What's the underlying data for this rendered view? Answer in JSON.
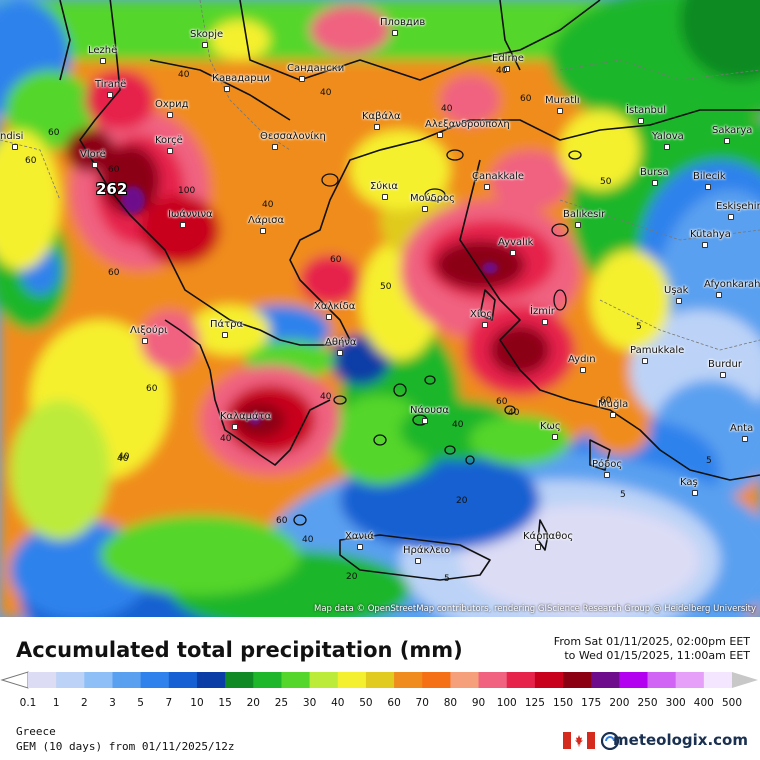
{
  "map": {
    "attribution": "Map data © OpenStreetMap contributors, rendering GIScience Research Group @ Heidelberg University",
    "max_value": "262",
    "cities": [
      {
        "name": "Пловдив"
      },
      {
        "name": "Lezhë"
      },
      {
        "name": "Skopje"
      },
      {
        "name": "Кавадарци"
      },
      {
        "name": "Сандански"
      },
      {
        "name": "Edirne"
      },
      {
        "name": "Tiranë"
      },
      {
        "name": "Охрид"
      },
      {
        "name": "Muratlı"
      },
      {
        "name": "İstanbul"
      },
      {
        "name": "Korçë"
      },
      {
        "name": "Καβάλα"
      },
      {
        "name": "Αλεξανδρούπολη"
      },
      {
        "name": "Yalova"
      },
      {
        "name": "Sakarya"
      },
      {
        "name": "Θεσσαλονίκη"
      },
      {
        "name": "ndisi"
      },
      {
        "name": "Vlorë"
      },
      {
        "name": "Bursa"
      },
      {
        "name": "Bilecik"
      },
      {
        "name": "Çanakkale"
      },
      {
        "name": "Σύκια"
      },
      {
        "name": "Μούδρος"
      },
      {
        "name": "Eskişehir"
      },
      {
        "name": "Ιωάννινα"
      },
      {
        "name": "Λάρισα"
      },
      {
        "name": "Balıkesir"
      },
      {
        "name": "Kütahya"
      },
      {
        "name": "Ayvalık"
      },
      {
        "name": "Afyonkarahisar"
      },
      {
        "name": "Χαλκίδα"
      },
      {
        "name": "Uşak"
      },
      {
        "name": "Λιξούρι"
      },
      {
        "name": "Πάτρα"
      },
      {
        "name": "Χίος"
      },
      {
        "name": "İzmir"
      },
      {
        "name": "Αθήνα"
      },
      {
        "name": "Pamukkale"
      },
      {
        "name": "Aydın"
      },
      {
        "name": "Burdur"
      },
      {
        "name": "Καλαμάτα"
      },
      {
        "name": "Νάουσα"
      },
      {
        "name": "Muğla"
      },
      {
        "name": "Κως"
      },
      {
        "name": "Anta"
      },
      {
        "name": "Ρόδος"
      },
      {
        "name": "Kaş"
      },
      {
        "name": "Χανιά"
      },
      {
        "name": "Ηράκλειο"
      },
      {
        "name": "Κάρπαθος"
      }
    ],
    "contour_labels": [
      {
        "text": "40"
      },
      {
        "text": "40"
      },
      {
        "text": "40"
      },
      {
        "text": "40"
      },
      {
        "text": "60"
      },
      {
        "text": "60"
      },
      {
        "text": "60"
      },
      {
        "text": "50"
      },
      {
        "text": "100"
      },
      {
        "text": "60"
      },
      {
        "text": "40"
      },
      {
        "text": "60"
      },
      {
        "text": "60"
      },
      {
        "text": "50"
      },
      {
        "text": "40"
      },
      {
        "text": "60"
      },
      {
        "text": "40"
      },
      {
        "text": "5"
      },
      {
        "text": "40"
      },
      {
        "text": "40"
      },
      {
        "text": "20"
      },
      {
        "text": "40"
      },
      {
        "text": "60"
      },
      {
        "text": "5"
      },
      {
        "text": "40"
      },
      {
        "text": "40"
      },
      {
        "text": "20"
      },
      {
        "text": "5"
      },
      {
        "text": "5"
      },
      {
        "text": "60"
      },
      {
        "text": "60"
      }
    ]
  },
  "header": {
    "title": "Accumulated total precipitation (mm)",
    "from": "From Sat 01/11/2025, 02:00pm EET",
    "to": "to Wed 01/15/2025, 11:00am EET"
  },
  "legend": {
    "bins": [
      {
        "label": "0.1",
        "color": "#dcdcf5"
      },
      {
        "label": "1",
        "color": "#bcd3f7"
      },
      {
        "label": "2",
        "color": "#8ec0f7"
      },
      {
        "label": "3",
        "color": "#5aa0f0"
      },
      {
        "label": "5",
        "color": "#2f82ec"
      },
      {
        "label": "7",
        "color": "#1560d2"
      },
      {
        "label": "10",
        "color": "#0a3da6"
      },
      {
        "label": "15",
        "color": "#108a24"
      },
      {
        "label": "20",
        "color": "#1eb62a"
      },
      {
        "label": "25",
        "color": "#55d62c"
      },
      {
        "label": "30",
        "color": "#bdeb3a"
      },
      {
        "label": "40",
        "color": "#f5f02f"
      },
      {
        "label": "50",
        "color": "#e0cb1e"
      },
      {
        "label": "60",
        "color": "#f08c1e"
      },
      {
        "label": "70",
        "color": "#f56f14"
      },
      {
        "label": "80",
        "color": "#f5a07a"
      },
      {
        "label": "90",
        "color": "#f06280"
      },
      {
        "label": "100",
        "color": "#e6244b"
      },
      {
        "label": "125",
        "color": "#c8001e"
      },
      {
        "label": "150",
        "color": "#8c0014"
      },
      {
        "label": "175",
        "color": "#6e0a8c"
      },
      {
        "label": "200",
        "color": "#b400f0"
      },
      {
        "label": "250",
        "color": "#d264f5"
      },
      {
        "label": "300",
        "color": "#e6a0fa"
      },
      {
        "label": "400",
        "color": "#f5e6ff"
      },
      {
        "label": "500",
        "color": "#c8c8c8"
      }
    ]
  },
  "footer": {
    "region": "Greece",
    "model": "GEM (10 days) from 01/11/2025/12z",
    "brand": "meteologix.com"
  }
}
